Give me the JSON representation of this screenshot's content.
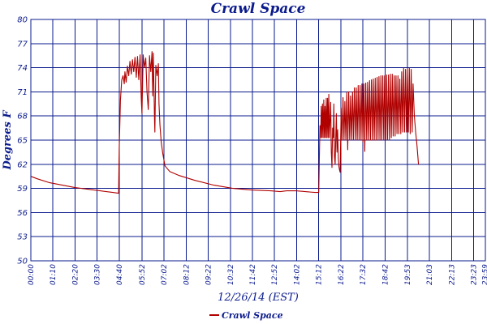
{
  "chart_data": {
    "type": "line",
    "title": "Crawl Space",
    "xlabel": "12/26/14 (EST)",
    "ylabel": "Degrees F",
    "ylim": [
      50,
      80
    ],
    "xlim_minutes": [
      0,
      1440
    ],
    "y_ticks": [
      "50",
      "53",
      "56",
      "59",
      "62",
      "65",
      "68",
      "71",
      "74",
      "77",
      "80"
    ],
    "x_ticks": [
      "00:00",
      "01:10",
      "02:20",
      "03:30",
      "04:40",
      "05:52",
      "07:02",
      "08:12",
      "09:22",
      "10:32",
      "11:42",
      "12:52",
      "14:02",
      "15:12",
      "16:22",
      "17:32",
      "18:42",
      "19:53",
      "21:03",
      "22:13",
      "23:23",
      "23:59"
    ],
    "grid": true,
    "legend_position": "bottom-left",
    "series": [
      {
        "name": "Crawl Space",
        "color": "#b00000",
        "points": [
          [
            0,
            60.5
          ],
          [
            20,
            60.2
          ],
          [
            60,
            59.7
          ],
          [
            100,
            59.4
          ],
          [
            140,
            59.1
          ],
          [
            180,
            58.9
          ],
          [
            220,
            58.7
          ],
          [
            260,
            58.5
          ],
          [
            278,
            58.4
          ],
          [
            280,
            64.0
          ],
          [
            284,
            70.0
          ],
          [
            288,
            72.5
          ],
          [
            292,
            73.0
          ],
          [
            296,
            72.0
          ],
          [
            298,
            73.5
          ],
          [
            302,
            72.2
          ],
          [
            306,
            74.2
          ],
          [
            310,
            73.0
          ],
          [
            314,
            74.8
          ],
          [
            318,
            73.2
          ],
          [
            322,
            75.0
          ],
          [
            326,
            73.5
          ],
          [
            330,
            75.3
          ],
          [
            334,
            72.8
          ],
          [
            338,
            75.4
          ],
          [
            342,
            72.5
          ],
          [
            346,
            75.6
          ],
          [
            350,
            70.0
          ],
          [
            352,
            68.3
          ],
          [
            356,
            75.6
          ],
          [
            360,
            74.0
          ],
          [
            364,
            75.2
          ],
          [
            368,
            71.0
          ],
          [
            372,
            68.8
          ],
          [
            376,
            75.5
          ],
          [
            380,
            73.5
          ],
          [
            384,
            76.0
          ],
          [
            386,
            70.5
          ],
          [
            388,
            75.8
          ],
          [
            392,
            67.5
          ],
          [
            393,
            66.0
          ],
          [
            396,
            74.3
          ],
          [
            400,
            73.0
          ],
          [
            404,
            74.5
          ],
          [
            406,
            69.5
          ],
          [
            409,
            66.8
          ],
          [
            413,
            64.8
          ],
          [
            418,
            63.3
          ],
          [
            425,
            61.8
          ],
          [
            440,
            61.1
          ],
          [
            470,
            60.6
          ],
          [
            520,
            60.0
          ],
          [
            580,
            59.4
          ],
          [
            640,
            59.0
          ],
          [
            700,
            58.8
          ],
          [
            760,
            58.7
          ],
          [
            790,
            58.6
          ],
          [
            810,
            58.7
          ],
          [
            840,
            58.7
          ],
          [
            870,
            58.6
          ],
          [
            900,
            58.5
          ],
          [
            912,
            58.5
          ],
          [
            914,
            62.5
          ],
          [
            916,
            66.8
          ],
          [
            918,
            65.3
          ],
          [
            920,
            69.2
          ],
          [
            922,
            65.3
          ],
          [
            924,
            69.5
          ],
          [
            926,
            65.3
          ],
          [
            928,
            70.0
          ],
          [
            930,
            65.3
          ],
          [
            932,
            69.2
          ],
          [
            934,
            65.3
          ],
          [
            936,
            70.2
          ],
          [
            938,
            65.3
          ],
          [
            940,
            70.2
          ],
          [
            942,
            65.3
          ],
          [
            944,
            70.7
          ],
          [
            946,
            65.3
          ],
          [
            950,
            69.7
          ],
          [
            952,
            63.5
          ],
          [
            954,
            61.6
          ],
          [
            956,
            66.5
          ],
          [
            958,
            65.3
          ],
          [
            960,
            69.5
          ],
          [
            962,
            63.0
          ],
          [
            964,
            62.0
          ],
          [
            966,
            65.3
          ],
          [
            968,
            68.3
          ],
          [
            970,
            63.5
          ],
          [
            972,
            66.3
          ],
          [
            974,
            62.8
          ],
          [
            976,
            61.7
          ],
          [
            978,
            61.3
          ],
          [
            980,
            61.0
          ],
          [
            983,
            69.0
          ],
          [
            986,
            65.0
          ],
          [
            989,
            70.3
          ],
          [
            992,
            65.0
          ],
          [
            995,
            69.8
          ],
          [
            998,
            65.0
          ],
          [
            1001,
            70.9
          ],
          [
            1004,
            63.8
          ],
          [
            1007,
            71.0
          ],
          [
            1010,
            65.0
          ],
          [
            1013,
            70.5
          ],
          [
            1016,
            65.0
          ],
          [
            1019,
            71.0
          ],
          [
            1022,
            65.0
          ],
          [
            1025,
            71.5
          ],
          [
            1028,
            65.0
          ],
          [
            1031,
            71.5
          ],
          [
            1034,
            65.0
          ],
          [
            1037,
            71.8
          ],
          [
            1040,
            65.0
          ],
          [
            1043,
            71.8
          ],
          [
            1046,
            65.0
          ],
          [
            1049,
            72.0
          ],
          [
            1052,
            64.8
          ],
          [
            1055,
            72.0
          ],
          [
            1058,
            63.6
          ],
          [
            1061,
            72.1
          ],
          [
            1064,
            65.0
          ],
          [
            1067,
            72.2
          ],
          [
            1070,
            65.0
          ],
          [
            1073,
            72.4
          ],
          [
            1076,
            65.0
          ],
          [
            1079,
            72.5
          ],
          [
            1082,
            65.0
          ],
          [
            1085,
            72.6
          ],
          [
            1088,
            65.0
          ],
          [
            1091,
            72.7
          ],
          [
            1094,
            65.0
          ],
          [
            1097,
            72.8
          ],
          [
            1100,
            65.0
          ],
          [
            1103,
            72.9
          ],
          [
            1106,
            65.0
          ],
          [
            1109,
            73.0
          ],
          [
            1112,
            65.0
          ],
          [
            1115,
            73.0
          ],
          [
            1118,
            65.0
          ],
          [
            1121,
            73.0
          ],
          [
            1124,
            65.0
          ],
          [
            1127,
            73.1
          ],
          [
            1130,
            65.0
          ],
          [
            1133,
            73.1
          ],
          [
            1136,
            65.0
          ],
          [
            1139,
            73.2
          ],
          [
            1142,
            65.3
          ],
          [
            1145,
            73.2
          ],
          [
            1148,
            65.5
          ],
          [
            1151,
            73.0
          ],
          [
            1154,
            65.5
          ],
          [
            1157,
            73.0
          ],
          [
            1160,
            65.8
          ],
          [
            1163,
            73.0
          ],
          [
            1166,
            65.8
          ],
          [
            1169,
            72.6
          ],
          [
            1172,
            65.8
          ],
          [
            1175,
            73.5
          ],
          [
            1178,
            66.0
          ],
          [
            1181,
            74.0
          ],
          [
            1184,
            66.0
          ],
          [
            1187,
            73.8
          ],
          [
            1190,
            66.0
          ],
          [
            1193,
            73.8
          ],
          [
            1196,
            66.0
          ],
          [
            1199,
            74.0
          ],
          [
            1202,
            65.8
          ],
          [
            1205,
            73.8
          ],
          [
            1208,
            66.0
          ],
          [
            1211,
            72.0
          ],
          [
            1215,
            68.0
          ],
          [
            1219,
            66.0
          ],
          [
            1223,
            64.5
          ],
          [
            1226,
            63.0
          ],
          [
            1228,
            62.0
          ]
        ]
      }
    ]
  }
}
